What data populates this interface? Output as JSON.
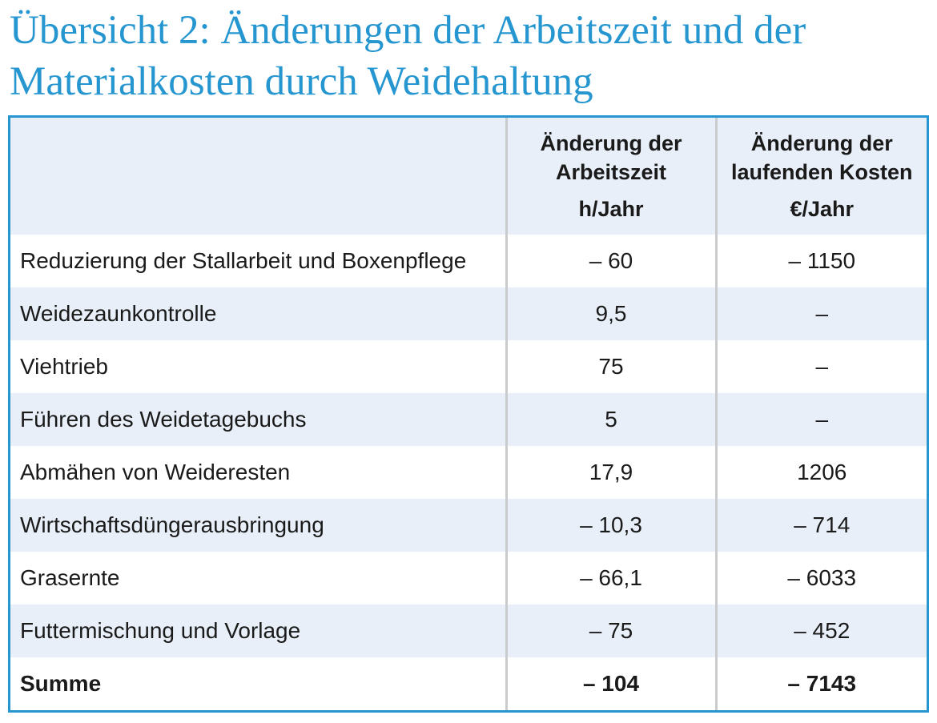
{
  "title": {
    "line1": "Übersicht 2: Änderungen der Arbeitszeit und der",
    "line2": "Materialkosten durch Weidehaltung"
  },
  "table": {
    "headers": [
      {
        "line1": "",
        "line2": "",
        "unit": ""
      },
      {
        "line1": "Änderung der",
        "line2": "Arbeitszeit",
        "unit": "h/Jahr"
      },
      {
        "line1": "Änderung der",
        "line2": "laufenden Kosten",
        "unit": "€/Jahr"
      }
    ],
    "rows": [
      {
        "label": "Reduzierung der Stallarbeit und Boxenpflege",
        "time": "– 60",
        "cost": "– 1150"
      },
      {
        "label": "Weidezaunkontrolle",
        "time": "9,5",
        "cost": "–"
      },
      {
        "label": "Viehtrieb",
        "time": "75",
        "cost": "–"
      },
      {
        "label": "Führen des Weidetagebuchs",
        "time": "5",
        "cost": "–"
      },
      {
        "label": "Abmähen von Weideresten",
        "time": "17,9",
        "cost": "1206"
      },
      {
        "label": "Wirtschaftsdüngerausbringung",
        "time": "– 10,3",
        "cost": "– 714"
      },
      {
        "label": "Grasernte",
        "time": "– 66,1",
        "cost": "– 6033"
      },
      {
        "label": "Futtermischung und Vorlage",
        "time": "– 75",
        "cost": "– 452"
      }
    ],
    "total": {
      "label": "Summe",
      "time": "– 104",
      "cost": "– 7143"
    }
  },
  "colors": {
    "accent": "#2596cf",
    "row_tint": "#e8eff8",
    "separator": "#c9cbcd"
  }
}
